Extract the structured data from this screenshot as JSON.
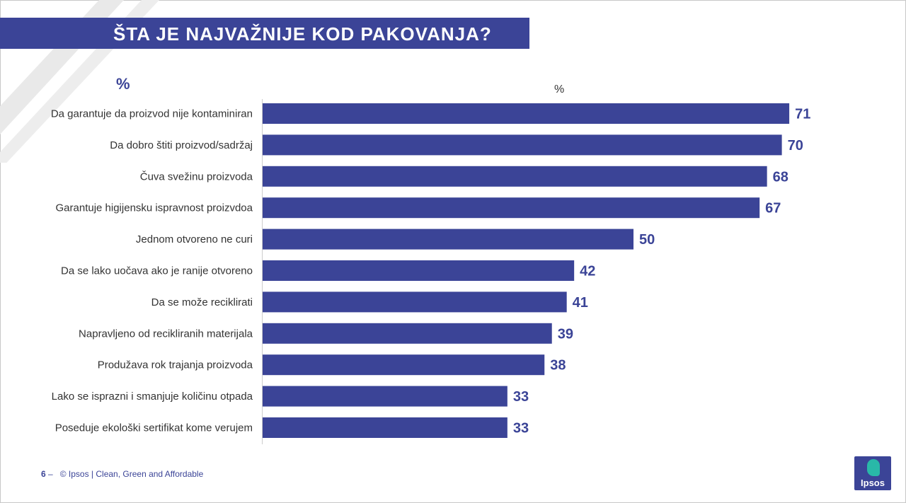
{
  "header": {
    "title": "ŠTA JE NAJVAŽNIJE KOD PAKOVANJA?"
  },
  "colors": {
    "brand": "#3b4497",
    "accent": "#29b8a8"
  },
  "chart_data": {
    "type": "bar",
    "orientation": "horizontal",
    "title": "ŠTA JE NAJVAŽNIJE KOD PAKOVANJA?",
    "unit_label_left": "%",
    "unit_label_top": "%",
    "categories": [
      "Da garantuje da proizvod nije kontaminiran",
      "Da dobro štiti proizvod/sadržaj",
      "Čuva svežinu proizvoda",
      "Garantuje higijensku ispravnost proizvdoa",
      "Jednom otvoreno ne curi",
      "Da se lako uočava ako je ranije otvoreno",
      "Da se može reciklirati",
      "Napravljeno od recikliranih materijala",
      "Produžava rok trajanja proizvoda",
      "Lako se isprazni i smanjuje količinu otpada",
      "Poseduje ekološki sertifikat kome verujem"
    ],
    "values": [
      71,
      70,
      68,
      67,
      50,
      42,
      41,
      39,
      38,
      33,
      33
    ],
    "xlim": [
      0,
      100
    ],
    "grid": false
  },
  "footer": {
    "page": "6",
    "dash": "–",
    "text": "© Ipsos | Clean, Green and Affordable"
  },
  "logo": {
    "text": "Ipsos",
    "icon": "ipsos-logo-icon"
  }
}
